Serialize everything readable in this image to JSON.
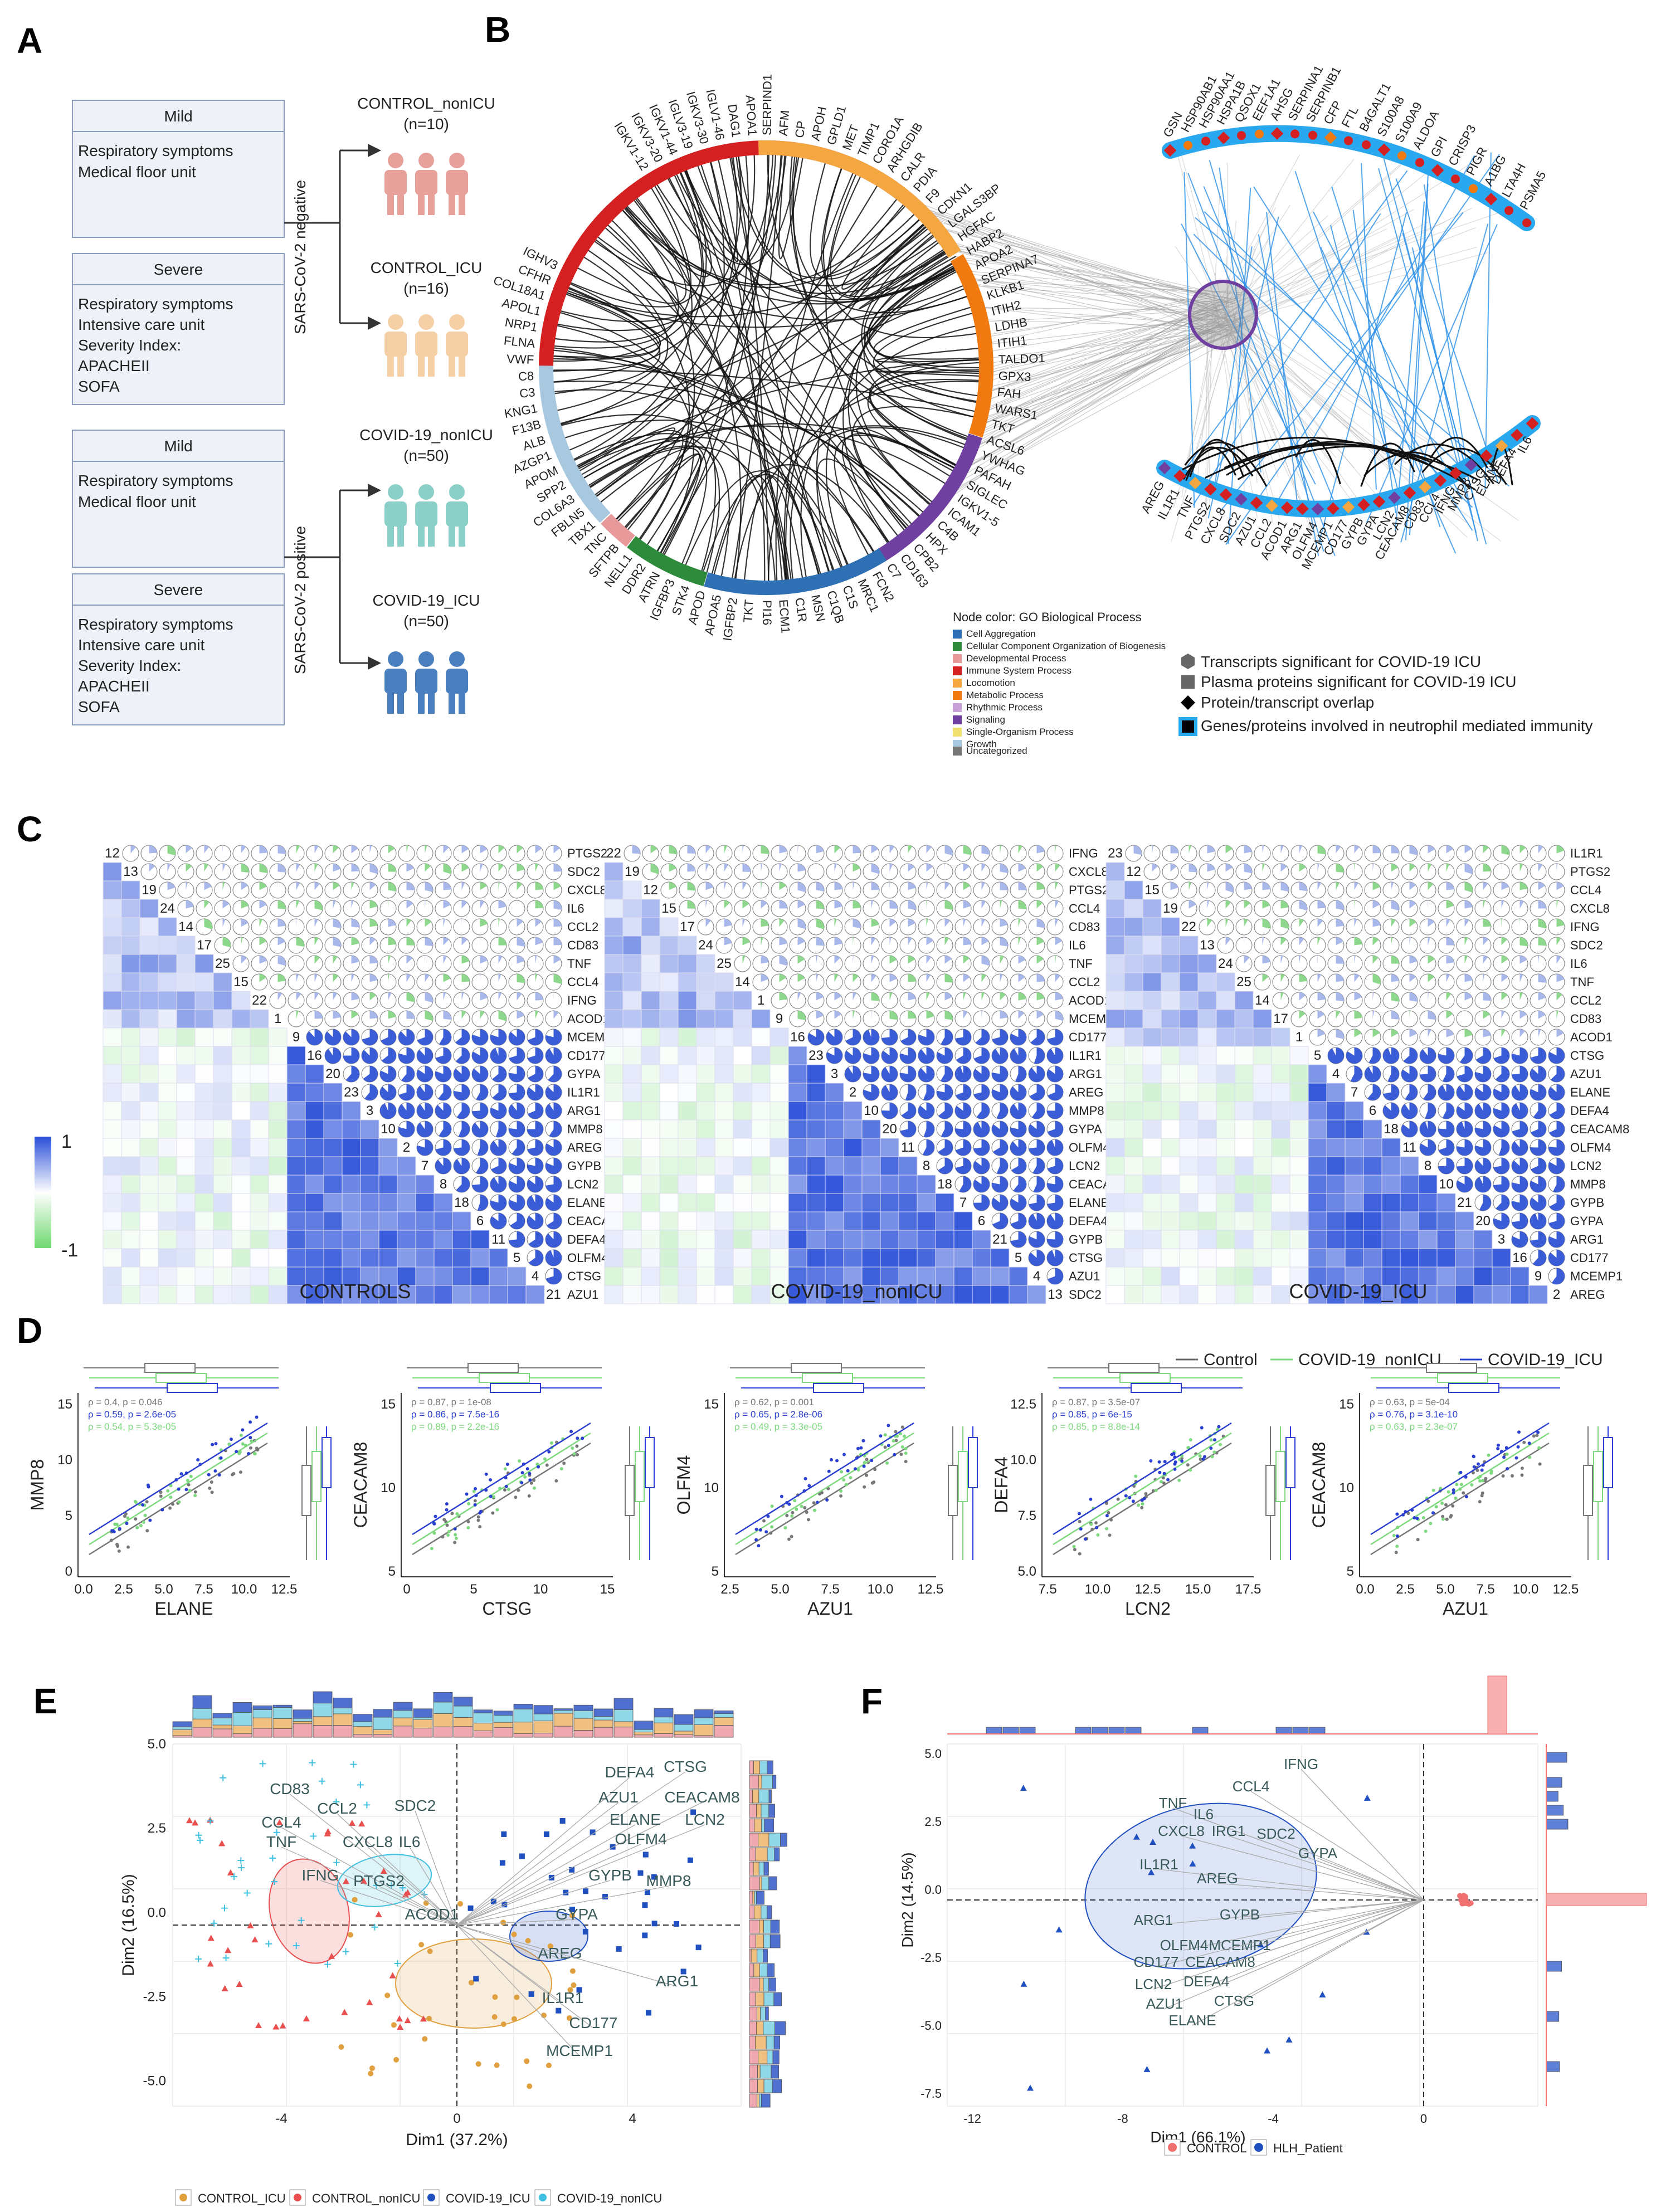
{
  "panels": {
    "A": "A",
    "B": "B",
    "C": "C",
    "D": "D",
    "E": "E",
    "F": "F"
  },
  "panelA": {
    "groups": [
      {
        "severity": "Mild",
        "lines": [
          "Respiratory symptoms",
          "Medical floor unit"
        ],
        "name": "CONTROL_nonICU",
        "n": "(n=10)",
        "color": "#e8a09a"
      },
      {
        "severity": "Severe",
        "lines": [
          "Respiratory symptoms",
          "Intensive care unit",
          "Severity Index:",
          "APACHEII",
          "SOFA"
        ],
        "name": "CONTROL_ICU",
        "n": "(n=16)",
        "color": "#f5cfa5"
      },
      {
        "severity": "Mild",
        "lines": [
          "Respiratory symptoms",
          "Medical floor unit"
        ],
        "name": "COVID-19_nonICU",
        "n": "(n=50)",
        "color": "#8ad0c8"
      },
      {
        "severity": "Severe",
        "lines": [
          "Respiratory symptoms",
          "Intensive care unit",
          "Severity Index:",
          "APACHEII",
          "SOFA"
        ],
        "name": "COVID-19_ICU",
        "n": "(n=50)",
        "color": "#4a7fbf"
      }
    ],
    "side_labels": [
      "SARS-CoV-2 negative",
      "SARS-CoV-2 positive"
    ]
  },
  "panelB": {
    "circle_labels": [
      "IGKV1-12",
      "IGKV3-20",
      "IGKV1-44",
      "IGLV3-19",
      "IGKV3-30",
      "IGLV1-46",
      "DAG1",
      "APOA1",
      "SERPIND1",
      "AFM",
      "CP",
      "APOH",
      "GPLD1",
      "MET",
      "TIMP1",
      "CORO1A",
      "ARHGDIB",
      "CALR",
      "PDIA",
      "F9",
      "CDKN1",
      "LGALS3BP",
      "HGFAC",
      "HABP2",
      "APOA2",
      "SERPINA7",
      "KLKB1",
      "ITIH2",
      "LDHB",
      "ITIH1",
      "TALDO1",
      "GPX3",
      "FAH",
      "WARS1",
      "TKT",
      "ACSL6",
      "YWHAG",
      "PAFAH",
      "SIGLEC",
      "IGKV1-5",
      "ICAM1",
      "C4B",
      "HPX",
      "CPB2",
      "CD163",
      "C7",
      "FCN2",
      "MRC1",
      "C1S",
      "C1QB",
      "MSN",
      "C1R",
      "ECM1",
      "PI16",
      "TKT",
      "IGFBP2",
      "APOA5",
      "APOD",
      "STK4",
      "IGFBP3",
      "ATRN",
      "DDR2",
      "NELL1",
      "SFTPB",
      "TNC",
      "TBX1",
      "FBLN5",
      "COL6A3",
      "SPP2",
      "APOM",
      "AZGP1",
      "ALB",
      "F13B",
      "KNG1",
      "C3",
      "C8",
      "VWF",
      "FLNA",
      "NRP1",
      "APOL1",
      "COL18A1",
      "CFHR",
      "IGHV3"
    ],
    "neutrophil_top": [
      "GSN",
      "HSP90AB1",
      "HSP90AA1",
      "HSPA1B",
      "QSOX1",
      "EEF1A1",
      "AHSG",
      "SERPINA1",
      "SERPINB1",
      "CFP",
      "FTL",
      "B4GALT1",
      "S100A8",
      "S100A9",
      "ALDOA",
      "GPI",
      "CRISP3",
      "PIGR",
      "A1BG",
      "LTA4H",
      "PSMA5"
    ],
    "neutrophil_bottom": [
      "AREG",
      "IL1R1",
      "TNF",
      "PTGS2",
      "CXCL8",
      "SDC2",
      "AZU1",
      "CCL2",
      "ACOD1",
      "ARG1",
      "OLFM4",
      "MCEMP1",
      "CD177",
      "GYPB",
      "GYPA",
      "LCN2",
      "CEACAM8",
      "CD83",
      "CCL4",
      "IFNG",
      "MMP8",
      "CTSG",
      "ELANE",
      "DEFA4",
      "IL6"
    ],
    "legend_title": "Node color: GO Biological Process",
    "legend": [
      {
        "label": "Cell Aggregation",
        "color": "#2f6fb3"
      },
      {
        "label": "Cellular Component Organization of Biogenesis",
        "color": "#2e8b3c"
      },
      {
        "label": "Developmental Process",
        "color": "#e89a9a"
      },
      {
        "label": "Immune System Process",
        "color": "#d42020"
      },
      {
        "label": "Locomotion",
        "color": "#f4a640"
      },
      {
        "label": "Metabolic Process",
        "color": "#f07a10"
      },
      {
        "label": "Rhythmic Process",
        "color": "#c8a0d8"
      },
      {
        "label": "Signaling",
        "color": "#7040a0"
      },
      {
        "label": "Single-Organism Process",
        "color": "#f0e070"
      },
      {
        "label": "Growth",
        "color": "#a8c8e0"
      },
      {
        "label": "Uncategorized",
        "color": "#777777"
      }
    ],
    "shape_legend": [
      "Transcripts significant for COVID-19 ICU",
      "Plasma proteins significant for COVID-19 ICU",
      "Protein/transcript overlap",
      "Genes/proteins involved in neutrophil mediated immunity"
    ]
  },
  "panelC": {
    "scale_max": "1",
    "scale_min": "-1",
    "heatmaps": [
      {
        "title": "CONTROLS",
        "genes": [
          "PTGS2",
          "SDC2",
          "CXCL8",
          "IL6",
          "CCL2",
          "CD83",
          "TNF",
          "CCL4",
          "IFNG",
          "ACOD1",
          "MCEMP1",
          "CD177",
          "GYPA",
          "IL1R1",
          "ARG1",
          "MMP8",
          "AREG",
          "GYPB",
          "LCN2",
          "ELANE",
          "CEACAM8",
          "DEFA4",
          "OLFM4",
          "CTSG",
          "AZU1"
        ],
        "ranks": [
          "12",
          "13",
          "19",
          "24",
          "14",
          "17",
          "25",
          "15",
          "22",
          "1",
          "9",
          "16",
          "20",
          "23",
          "3",
          "10",
          "2",
          "7",
          "8",
          "18",
          "6",
          "11",
          "5",
          "4",
          "21"
        ]
      },
      {
        "title": "COVID-19_nonICU",
        "genes": [
          "IFNG",
          "CXCL8",
          "PTGS2",
          "CCL4",
          "CD83",
          "IL6",
          "TNF",
          "CCL2",
          "ACOD1",
          "MCEMP1",
          "CD177",
          "IL1R1",
          "ARG1",
          "AREG",
          "MMP8",
          "GYPA",
          "OLFM4",
          "LCN2",
          "CEACAM8",
          "ELANE",
          "DEFA4",
          "GYPB",
          "CTSG",
          "AZU1",
          "SDC2"
        ],
        "ranks": [
          "22",
          "19",
          "12",
          "15",
          "17",
          "24",
          "25",
          "14",
          "1",
          "9",
          "16",
          "23",
          "3",
          "2",
          "10",
          "20",
          "11",
          "8",
          "18",
          "7",
          "6",
          "21",
          "5",
          "4",
          "13"
        ]
      },
      {
        "title": "COVID-19_ICU",
        "genes": [
          "IL1R1",
          "PTGS2",
          "CCL4",
          "CXCL8",
          "IFNG",
          "SDC2",
          "IL6",
          "TNF",
          "CCL2",
          "CD83",
          "ACOD1",
          "CTSG",
          "AZU1",
          "ELANE",
          "DEFA4",
          "CEACAM8",
          "OLFM4",
          "LCN2",
          "MMP8",
          "GYPB",
          "GYPA",
          "ARG1",
          "CD177",
          "MCEMP1",
          "AREG"
        ],
        "ranks": [
          "23",
          "12",
          "15",
          "19",
          "22",
          "13",
          "24",
          "25",
          "14",
          "17",
          "1",
          "5",
          "4",
          "7",
          "6",
          "18",
          "11",
          "8",
          "10",
          "21",
          "20",
          "3",
          "16",
          "9",
          "2"
        ]
      }
    ]
  },
  "panelD": {
    "legend": [
      {
        "label": "Control",
        "color": "#666666"
      },
      {
        "label": "COVID-19_nonICU",
        "color": "#7ed87e"
      },
      {
        "label": "COVID-19_ICU",
        "color": "#2a3fd0"
      }
    ],
    "plots": [
      {
        "x": "ELANE",
        "y": "MMP8",
        "xticks": [
          "0.0",
          "2.5",
          "5.0",
          "7.5",
          "10.0",
          "12.5"
        ],
        "yticks": [
          "15",
          "10",
          "5",
          "0"
        ],
        "stats": [
          "ρ = 0.4, p = 0.046",
          "ρ = 0.59, p = 2.6e-05",
          "ρ = 0.54, p = 5.3e-05"
        ]
      },
      {
        "x": "CTSG",
        "y": "CEACAM8",
        "xticks": [
          "0",
          "5",
          "10",
          "15"
        ],
        "yticks": [
          "15",
          "10",
          "5"
        ],
        "stats": [
          "ρ = 0.87, p = 1e-08",
          "ρ = 0.86, p = 7.5e-16",
          "ρ = 0.89, p = 2.2e-16"
        ]
      },
      {
        "x": "AZU1",
        "y": "OLFM4",
        "xticks": [
          "2.5",
          "5.0",
          "7.5",
          "10.0",
          "12.5"
        ],
        "yticks": [
          "15",
          "10",
          "5"
        ],
        "stats": [
          "ρ = 0.62, p = 0.001",
          "ρ = 0.65, p = 2.8e-06",
          "ρ = 0.49, p = 3.3e-05"
        ]
      },
      {
        "x": "LCN2",
        "y": "DEFA4",
        "xticks": [
          "7.5",
          "10.0",
          "12.5",
          "15.0",
          "17.5"
        ],
        "yticks": [
          "12.5",
          "10.0",
          "7.5",
          "5.0"
        ],
        "stats": [
          "ρ = 0.87, p = 3.5e-07",
          "ρ = 0.85, p = 6e-15",
          "ρ = 0.85, p = 8.8e-14"
        ]
      },
      {
        "x": "AZU1",
        "y": "CEACAM8",
        "xticks": [
          "0.0",
          "2.5",
          "5.0",
          "7.5",
          "10.0",
          "12.5"
        ],
        "yticks": [
          "15",
          "10",
          "5"
        ],
        "stats": [
          "ρ = 0.63, p = 5e-04",
          "ρ = 0.76, p = 3.1e-10",
          "ρ = 0.63, p = 2.3e-07"
        ]
      }
    ]
  },
  "panelE": {
    "xlabel": "Dim1 (37.2%)",
    "ylabel": "Dim2 (16.5%)",
    "xticks": [
      "-4",
      "0",
      "4"
    ],
    "yticks": [
      "5.0",
      "2.5",
      "0.0",
      "-2.5",
      "-5.0"
    ],
    "loadings": [
      "CD83",
      "CCL4",
      "CCL2",
      "SDC2",
      "TNF",
      "CXCL8",
      "IL6",
      "IFNG",
      "PTGS2",
      "ACOD1",
      "DEFA4",
      "CTSG",
      "AZU1",
      "CEACAM8",
      "ELANE",
      "LCN2",
      "OLFM4",
      "GYPB",
      "MMP8",
      "GYPA",
      "AREG",
      "ARG1",
      "IL1R1",
      "CD177",
      "MCEMP1"
    ],
    "legend": [
      {
        "label": "CONTROL_ICU",
        "color": "#e0a040"
      },
      {
        "label": "CONTROL_nonICU",
        "color": "#e85050"
      },
      {
        "label": "COVID-19_ICU",
        "color": "#2050c0"
      },
      {
        "label": "COVID-19_nonICU",
        "color": "#40c0e0"
      }
    ]
  },
  "panelF": {
    "xlabel": "Dim1 (66.1%)",
    "ylabel": "Dim2 (14.5%)",
    "xticks": [
      "-12",
      "-8",
      "-4",
      "0"
    ],
    "yticks": [
      "5.0",
      "2.5",
      "0.0",
      "-2.5",
      "-5.0",
      "-7.5"
    ],
    "loadings": [
      "IFNG",
      "CCL4",
      "TNF",
      "IL6",
      "CXCL8",
      "IRG1",
      "SDC2",
      "GYPA",
      "IL1R1",
      "AREG",
      "ARG1",
      "GYPB",
      "OLFM4",
      "MCEMP1",
      "CD177",
      "CEACAM8",
      "LCN2",
      "DEFA4",
      "AZU1",
      "CTSG",
      "ELANE"
    ],
    "legend": [
      {
        "label": "CONTROL",
        "color": "#f07070"
      },
      {
        "label": "HLH_Patient",
        "color": "#2050c0"
      }
    ]
  }
}
